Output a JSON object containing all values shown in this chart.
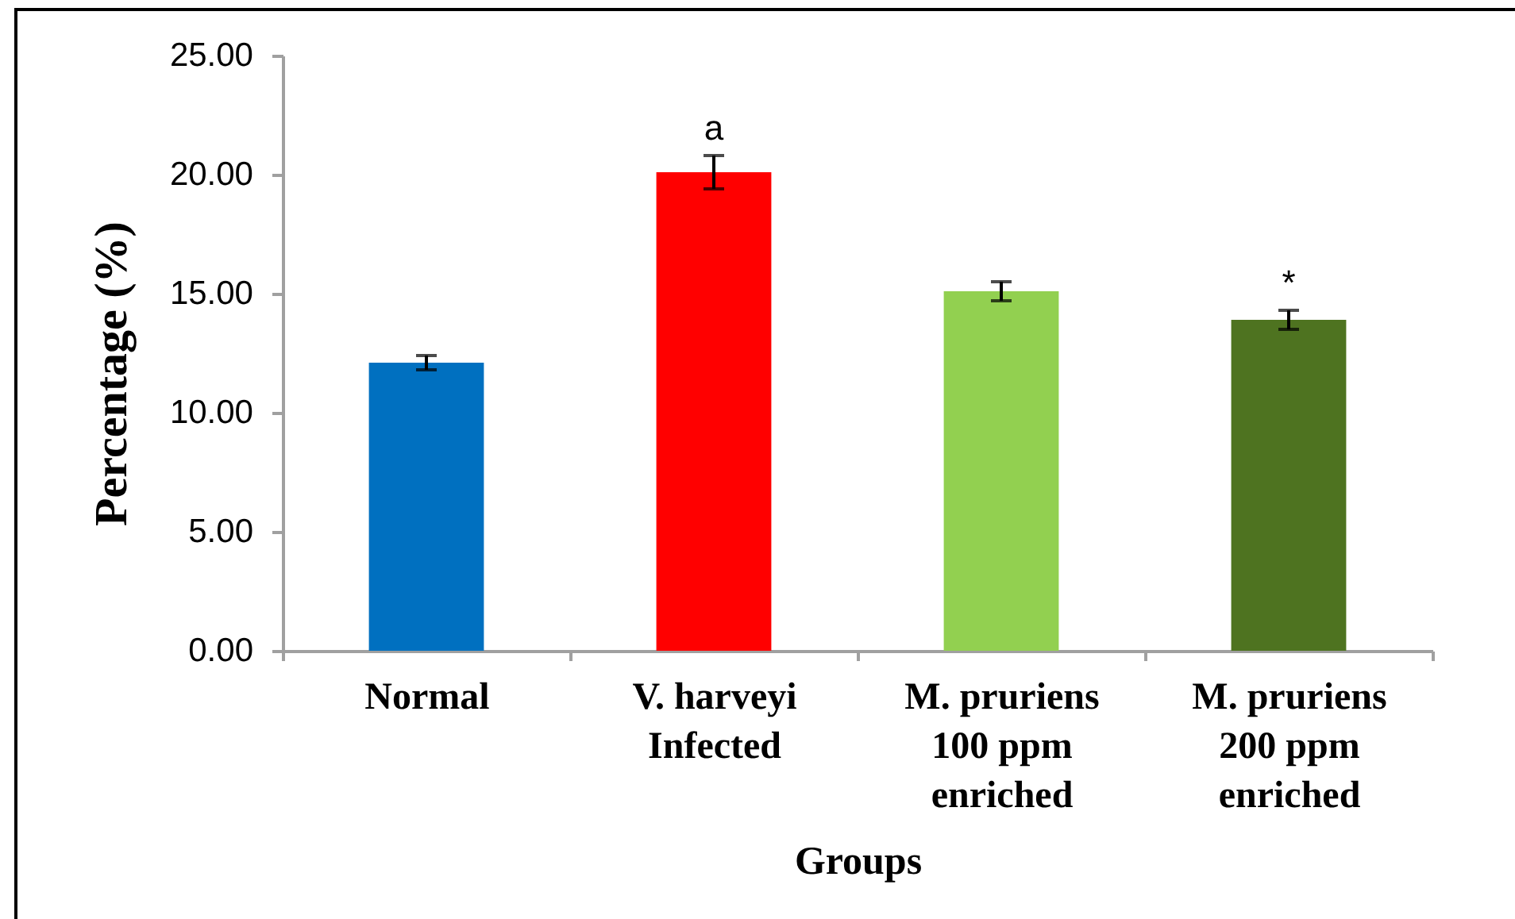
{
  "chart_data": {
    "type": "bar",
    "xlabel": "Groups",
    "ylabel": "Percentage (%)",
    "categories": [
      "Normal",
      "V. harveyi Infected",
      "M. pruriens 100 ppm enriched",
      "M. pruriens 200 ppm enriched"
    ],
    "values": [
      12.1,
      20.1,
      15.1,
      13.9
    ],
    "errors": [
      0.3,
      0.7,
      0.4,
      0.4
    ],
    "colors": [
      "#0070c0",
      "#ff0000",
      "#92d050",
      "#4e7320"
    ],
    "ylim": [
      0,
      25
    ],
    "yticks": [
      {
        "value": 0,
        "label": "0.00"
      },
      {
        "value": 5,
        "label": "5.00"
      },
      {
        "value": 10,
        "label": "10.00"
      },
      {
        "value": 15,
        "label": "15.00"
      },
      {
        "value": 20,
        "label": "20.00"
      },
      {
        "value": 25,
        "label": "25.00"
      }
    ],
    "grid": false,
    "legend": false,
    "annotations": [
      {
        "text": "a",
        "x": "V. harveyi Infected",
        "y": 20.1
      },
      {
        "text": "*",
        "x": "M. pruriens 200 ppm enriched",
        "y": 13.9
      }
    ]
  }
}
